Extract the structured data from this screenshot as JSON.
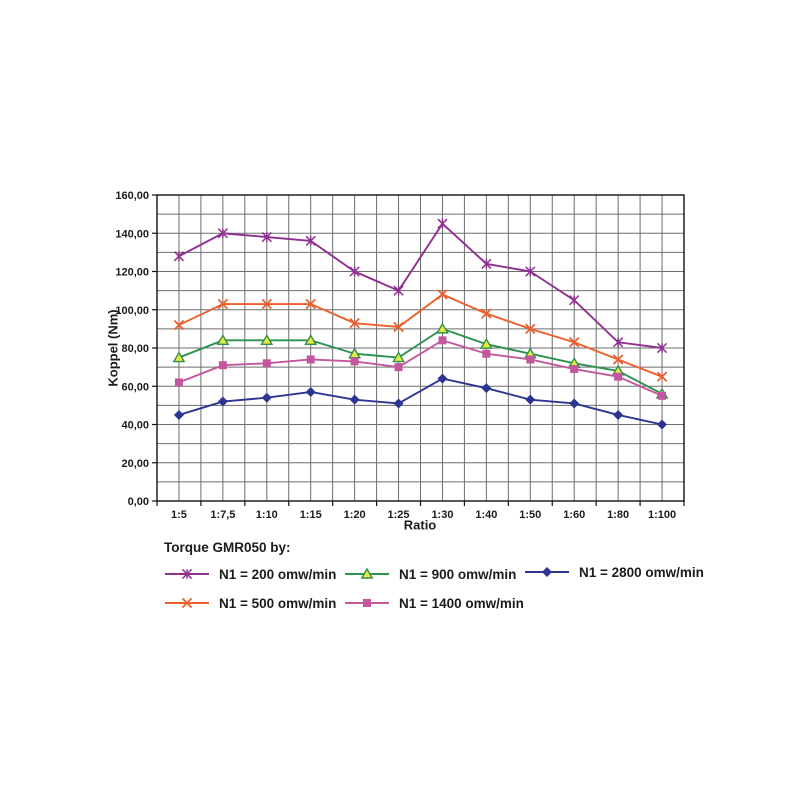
{
  "chart_data": {
    "type": "line",
    "title": "Torque GMR050 by:",
    "xlabel": "Ratio",
    "ylabel": "Koppel (Nm)",
    "categories": [
      "1:5",
      "1:7,5",
      "1:10",
      "1:15",
      "1:20",
      "1:25",
      "1:30",
      "1:40",
      "1:50",
      "1:60",
      "1:80",
      "1:100"
    ],
    "ylim": [
      0,
      160
    ],
    "ygrid_step": 10,
    "ylabel_step": 20,
    "ytick_labels": [
      "0,00",
      "20,00",
      "40,00",
      "60,00",
      "80,00",
      "100,00",
      "120,00",
      "140,00",
      "160,00"
    ],
    "grid": true,
    "legend_position": "bottom-left",
    "colors": {
      "grid": "#6e6e6e",
      "axis": "#111111",
      "text": "#1c1c1c"
    },
    "series": [
      {
        "name": "N1 = 200 omw/min",
        "color": "#8F2F8F",
        "marker": "asterisk",
        "values": [
          128,
          140,
          138,
          136,
          120,
          110,
          145,
          124,
          120,
          105,
          83,
          80
        ]
      },
      {
        "name": "N1 = 500 omw/min",
        "color": "#EE5F2B",
        "marker": "x",
        "values": [
          92,
          103,
          103,
          103,
          93,
          91,
          108,
          98,
          90,
          83,
          74,
          65
        ]
      },
      {
        "name": "N1 = 900 omw/min",
        "color": "#2E9150",
        "marker": "triangle",
        "marker_fill": "#E6E93F",
        "values": [
          75,
          84,
          84,
          84,
          77,
          75,
          90,
          82,
          77,
          72,
          68,
          56
        ]
      },
      {
        "name": "N1 = 1400 omw/min",
        "color": "#C2579F",
        "marker": "square",
        "values": [
          62,
          71,
          72,
          74,
          73,
          70,
          84,
          77,
          74,
          69,
          65,
          55
        ]
      },
      {
        "name": "N1 = 2800 omw/min",
        "color": "#2C3692",
        "marker": "diamond",
        "values": [
          45,
          52,
          54,
          57,
          53,
          51,
          64,
          59,
          53,
          51,
          45,
          40
        ]
      }
    ]
  }
}
